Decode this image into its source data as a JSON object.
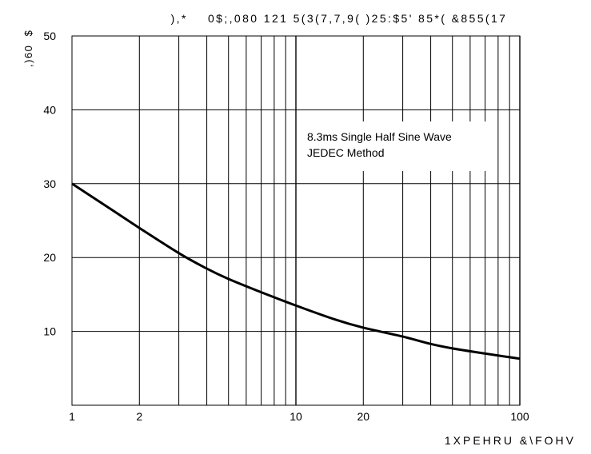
{
  "chart_data": {
    "type": "line",
    "title": "),*    0$;,080 121 5(3(7,7,9( )25:$5' 85*( &855(17",
    "ylabel": ",)60  $",
    "xlabel": "1XPEHRU &\\FOHV",
    "x_scale": "log",
    "xlim": [
      1,
      100
    ],
    "ylim": [
      0,
      50
    ],
    "x_ticks": [
      {
        "value": 1,
        "label": "1"
      },
      {
        "value": 2,
        "label": "2"
      },
      {
        "value": 10,
        "label": "10"
      },
      {
        "value": 20,
        "label": "20"
      },
      {
        "value": 100,
        "label": "100"
      }
    ],
    "y_ticks": [
      {
        "value": 10,
        "label": "10"
      },
      {
        "value": 20,
        "label": "20"
      },
      {
        "value": 30,
        "label": "30"
      },
      {
        "value": 40,
        "label": "40"
      },
      {
        "value": 50,
        "label": "50"
      }
    ],
    "grid": true,
    "annotation": [
      "8.3ms Single Half Sine Wave",
      "JEDEC Method"
    ],
    "series": [
      {
        "color": "#000000",
        "x": [
          1,
          1.5,
          2,
          3,
          4,
          5,
          7,
          10,
          15,
          20,
          30,
          40,
          50,
          70,
          100
        ],
        "y": [
          30.0,
          26.5,
          24.0,
          20.6,
          18.5,
          17.1,
          15.3,
          13.5,
          11.6,
          10.5,
          9.3,
          8.3,
          7.7,
          7.0,
          6.3
        ]
      }
    ]
  }
}
